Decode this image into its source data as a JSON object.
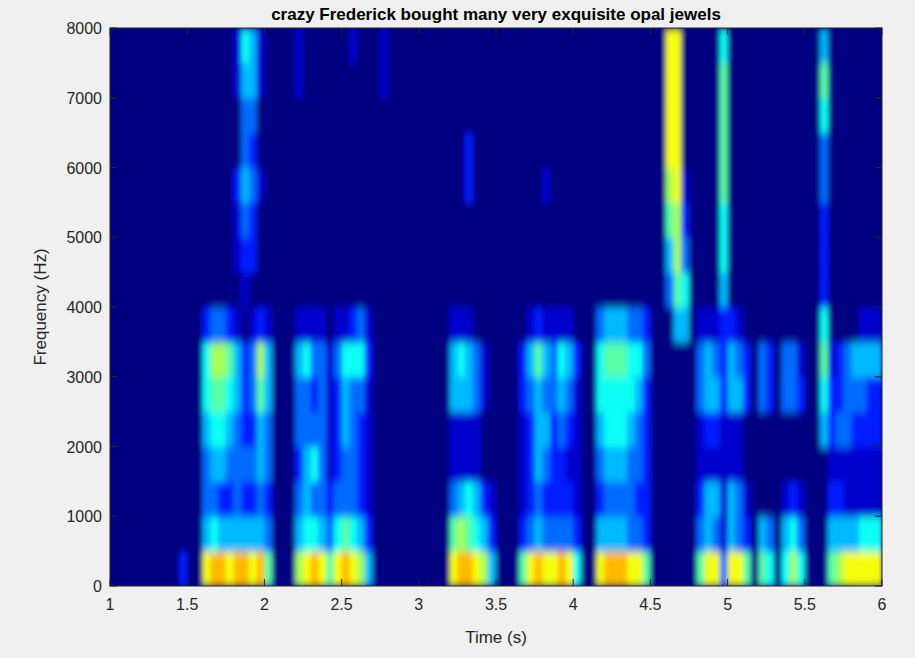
{
  "chart_data": {
    "type": "heatmap",
    "title": "crazy Frederick bought many very exquisite opal jewels",
    "xlabel": "Time (s)",
    "ylabel": "Frequency (Hz)",
    "xlim": [
      1,
      6
    ],
    "ylim": [
      0,
      8000
    ],
    "xticks": [
      1,
      1.5,
      2,
      2.5,
      3,
      3.5,
      4,
      4.5,
      5,
      5.5,
      6
    ],
    "yticks": [
      0,
      1000,
      2000,
      3000,
      4000,
      5000,
      6000,
      7000,
      8000
    ],
    "zlim": [
      0,
      13
    ],
    "z": [
      [
        0,
        0,
        0,
        0,
        0,
        0,
        0,
        0,
        0,
        2,
        0,
        0,
        8,
        9,
        9,
        8,
        9,
        9,
        8,
        9,
        6,
        0,
        0,
        0,
        7,
        8,
        9,
        8,
        6,
        8,
        9,
        8,
        7,
        4,
        0,
        0,
        0,
        0,
        0,
        0,
        0,
        0,
        0,
        0,
        8,
        9,
        9,
        8,
        7,
        4,
        0,
        0,
        0,
        6,
        8,
        9,
        8,
        8,
        9,
        8,
        5,
        0,
        0,
        8,
        9,
        9,
        9,
        8,
        8,
        6,
        0,
        0,
        0,
        0,
        0,
        0,
        6,
        8,
        8,
        3,
        8,
        8,
        6,
        0,
        6,
        5,
        0,
        5,
        7,
        5,
        0,
        0,
        0,
        6,
        7,
        8,
        8,
        8,
        8,
        8
      ],
      [
        0,
        0,
        0,
        0,
        0,
        0,
        0,
        0,
        0,
        0,
        0,
        0,
        4,
        5,
        4,
        4,
        4,
        4,
        4,
        4,
        3,
        0,
        0,
        0,
        4,
        5,
        5,
        4,
        3,
        5,
        6,
        5,
        4,
        2,
        0,
        0,
        0,
        0,
        0,
        0,
        0,
        0,
        0,
        0,
        6,
        7,
        6,
        5,
        4,
        2,
        0,
        0,
        0,
        2,
        3,
        4,
        3,
        3,
        3,
        3,
        2,
        0,
        0,
        4,
        4,
        4,
        4,
        3,
        3,
        2,
        0,
        0,
        0,
        0,
        0,
        0,
        3,
        4,
        3,
        1,
        4,
        3,
        2,
        0,
        4,
        3,
        0,
        4,
        5,
        3,
        0,
        0,
        0,
        4,
        4,
        4,
        4,
        5,
        5,
        5
      ],
      [
        0,
        0,
        0,
        0,
        0,
        0,
        0,
        0,
        0,
        0,
        0,
        0,
        3,
        3,
        2,
        2,
        3,
        2,
        2,
        3,
        2,
        0,
        0,
        0,
        3,
        4,
        3,
        3,
        2,
        3,
        3,
        3,
        2,
        1,
        0,
        0,
        0,
        0,
        0,
        0,
        0,
        0,
        0,
        0,
        3,
        4,
        5,
        4,
        2,
        1,
        0,
        0,
        0,
        1,
        2,
        3,
        2,
        2,
        2,
        2,
        1,
        0,
        0,
        2,
        3,
        3,
        3,
        3,
        2,
        2,
        0,
        0,
        0,
        0,
        0,
        0,
        2,
        4,
        4,
        1,
        4,
        3,
        1,
        0,
        0,
        0,
        0,
        1,
        2,
        1,
        0,
        0,
        0,
        2,
        2,
        1,
        1,
        1,
        1,
        1
      ],
      [
        0,
        0,
        0,
        0,
        0,
        0,
        0,
        0,
        0,
        0,
        0,
        0,
        3,
        4,
        4,
        3,
        3,
        3,
        3,
        4,
        3,
        0,
        0,
        0,
        2,
        4,
        5,
        3,
        1,
        2,
        3,
        3,
        2,
        1,
        0,
        0,
        0,
        0,
        0,
        0,
        0,
        0,
        0,
        0,
        1,
        1,
        1,
        1,
        0,
        0,
        0,
        0,
        0,
        1,
        2,
        4,
        3,
        2,
        2,
        1,
        1,
        0,
        0,
        3,
        4,
        4,
        4,
        3,
        3,
        2,
        0,
        0,
        0,
        0,
        0,
        0,
        1,
        1,
        1,
        1,
        1,
        1,
        0,
        0,
        0,
        0,
        0,
        0,
        0,
        0,
        0,
        0,
        0,
        1,
        1,
        1,
        1,
        1,
        1,
        1
      ],
      [
        0,
        0,
        0,
        0,
        0,
        0,
        0,
        0,
        0,
        0,
        0,
        0,
        4,
        5,
        5,
        4,
        3,
        2,
        2,
        4,
        3,
        0,
        0,
        0,
        3,
        3,
        3,
        3,
        1,
        2,
        4,
        3,
        2,
        1,
        0,
        0,
        0,
        0,
        0,
        0,
        0,
        0,
        0,
        0,
        1,
        1,
        1,
        1,
        0,
        0,
        0,
        0,
        0,
        1,
        2,
        4,
        4,
        2,
        3,
        2,
        1,
        0,
        0,
        4,
        5,
        5,
        5,
        4,
        3,
        2,
        0,
        0,
        0,
        0,
        0,
        0,
        1,
        2,
        2,
        1,
        1,
        1,
        0,
        0,
        0,
        0,
        0,
        0,
        0,
        0,
        0,
        0,
        4,
        2,
        3,
        3,
        2,
        2,
        2,
        2
      ],
      [
        0,
        0,
        0,
        0,
        0,
        0,
        0,
        0,
        0,
        0,
        0,
        0,
        5,
        6,
        6,
        5,
        4,
        2,
        3,
        6,
        4,
        0,
        0,
        0,
        3,
        3,
        2,
        3,
        1,
        2,
        4,
        3,
        3,
        1,
        0,
        0,
        0,
        0,
        0,
        0,
        0,
        0,
        0,
        0,
        4,
        4,
        4,
        3,
        1,
        0,
        0,
        0,
        0,
        2,
        3,
        4,
        3,
        3,
        4,
        3,
        1,
        0,
        0,
        5,
        5,
        5,
        5,
        5,
        4,
        2,
        0,
        0,
        0,
        0,
        0,
        0,
        3,
        4,
        4,
        2,
        4,
        4,
        2,
        0,
        3,
        2,
        0,
        3,
        3,
        2,
        0,
        0,
        5,
        2,
        2,
        3,
        3,
        3,
        2,
        2
      ],
      [
        0,
        0,
        0,
        0,
        0,
        0,
        0,
        0,
        0,
        0,
        0,
        0,
        5,
        7,
        7,
        6,
        4,
        2,
        3,
        7,
        4,
        0,
        0,
        0,
        4,
        5,
        3,
        3,
        1,
        3,
        5,
        5,
        5,
        2,
        0,
        0,
        0,
        0,
        0,
        0,
        0,
        0,
        0,
        0,
        4,
        5,
        4,
        3,
        1,
        0,
        0,
        0,
        0,
        2,
        4,
        6,
        4,
        3,
        5,
        4,
        2,
        0,
        0,
        5,
        6,
        6,
        6,
        5,
        5,
        3,
        0,
        0,
        0,
        0,
        0,
        0,
        3,
        4,
        3,
        2,
        4,
        3,
        2,
        0,
        3,
        2,
        0,
        3,
        3,
        1,
        0,
        0,
        6,
        1,
        2,
        3,
        4,
        4,
        4,
        4
      ],
      [
        0,
        0,
        0,
        0,
        0,
        0,
        0,
        0,
        0,
        0,
        0,
        0,
        2,
        3,
        3,
        2,
        1,
        0,
        1,
        2,
        1,
        0,
        0,
        0,
        1,
        1,
        1,
        1,
        0,
        1,
        1,
        2,
        3,
        1,
        0,
        0,
        0,
        0,
        0,
        0,
        0,
        0,
        0,
        0,
        1,
        1,
        1,
        0,
        0,
        0,
        0,
        0,
        0,
        0,
        1,
        2,
        1,
        1,
        1,
        1,
        0,
        0,
        0,
        3,
        4,
        4,
        4,
        3,
        3,
        2,
        0,
        0,
        0,
        4,
        4,
        0,
        1,
        1,
        1,
        2,
        2,
        1,
        0,
        0,
        0,
        0,
        0,
        0,
        0,
        0,
        0,
        0,
        5,
        0,
        0,
        0,
        0,
        1,
        1,
        1
      ],
      [
        0,
        0,
        0,
        0,
        0,
        0,
        0,
        0,
        0,
        0,
        0,
        0,
        0,
        0,
        0,
        0,
        0,
        1,
        0,
        0,
        0,
        0,
        0,
        0,
        0,
        0,
        0,
        0,
        0,
        0,
        0,
        0,
        0,
        0,
        0,
        0,
        0,
        0,
        0,
        0,
        0,
        0,
        0,
        0,
        0,
        0,
        0,
        0,
        0,
        0,
        0,
        0,
        0,
        0,
        0,
        0,
        0,
        0,
        0,
        0,
        0,
        0,
        0,
        0,
        0,
        0,
        0,
        0,
        0,
        0,
        0,
        0,
        3,
        6,
        5,
        0,
        0,
        0,
        0,
        4,
        0,
        0,
        0,
        0,
        0,
        0,
        0,
        0,
        0,
        0,
        0,
        0,
        2,
        0,
        0,
        0,
        0,
        0,
        0,
        0
      ],
      [
        0,
        0,
        0,
        0,
        0,
        0,
        0,
        0,
        0,
        0,
        0,
        0,
        0,
        0,
        0,
        0,
        1,
        2,
        2,
        0,
        0,
        0,
        0,
        0,
        0,
        0,
        0,
        0,
        0,
        0,
        0,
        0,
        0,
        0,
        0,
        0,
        0,
        0,
        0,
        0,
        0,
        0,
        0,
        0,
        0,
        0,
        0,
        0,
        0,
        0,
        0,
        0,
        0,
        0,
        0,
        0,
        0,
        0,
        0,
        0,
        0,
        0,
        0,
        0,
        0,
        0,
        0,
        0,
        0,
        0,
        0,
        0,
        4,
        7,
        3,
        0,
        0,
        0,
        0,
        5,
        0,
        0,
        0,
        0,
        0,
        0,
        0,
        0,
        0,
        0,
        0,
        0,
        2,
        0,
        0,
        0,
        0,
        0,
        0,
        0
      ],
      [
        0,
        0,
        0,
        0,
        0,
        0,
        0,
        0,
        0,
        0,
        0,
        0,
        0,
        0,
        0,
        0,
        1,
        3,
        2,
        0,
        0,
        0,
        0,
        0,
        0,
        0,
        0,
        0,
        0,
        0,
        0,
        0,
        0,
        0,
        0,
        0,
        0,
        0,
        0,
        0,
        0,
        0,
        0,
        0,
        0,
        0,
        0,
        0,
        0,
        0,
        0,
        0,
        0,
        0,
        0,
        0,
        0,
        0,
        0,
        0,
        0,
        0,
        0,
        0,
        0,
        0,
        0,
        0,
        0,
        0,
        0,
        0,
        6,
        7,
        2,
        0,
        0,
        0,
        0,
        5,
        0,
        0,
        0,
        0,
        0,
        0,
        0,
        0,
        0,
        0,
        0,
        0,
        2,
        0,
        0,
        0,
        0,
        0,
        0,
        0
      ],
      [
        0,
        0,
        0,
        0,
        0,
        0,
        0,
        0,
        0,
        0,
        0,
        0,
        0,
        0,
        0,
        0,
        2,
        4,
        3,
        1,
        0,
        0,
        0,
        0,
        0,
        0,
        0,
        0,
        0,
        0,
        0,
        0,
        0,
        0,
        0,
        0,
        0,
        0,
        0,
        0,
        0,
        0,
        0,
        0,
        0,
        0,
        2,
        0,
        0,
        0,
        0,
        0,
        0,
        0,
        0,
        0,
        1,
        0,
        0,
        0,
        0,
        0,
        0,
        0,
        0,
        0,
        0,
        0,
        0,
        0,
        0,
        0,
        7,
        8,
        1,
        0,
        0,
        0,
        0,
        6,
        0,
        0,
        0,
        0,
        0,
        0,
        0,
        0,
        0,
        0,
        0,
        0,
        3,
        0,
        0,
        0,
        0,
        0,
        0,
        0
      ],
      [
        0,
        0,
        0,
        0,
        0,
        0,
        0,
        0,
        0,
        0,
        0,
        0,
        0,
        0,
        0,
        0,
        0,
        3,
        2,
        0,
        0,
        0,
        0,
        0,
        0,
        0,
        0,
        0,
        0,
        0,
        0,
        0,
        0,
        0,
        0,
        0,
        0,
        0,
        0,
        0,
        0,
        0,
        0,
        0,
        0,
        0,
        2,
        0,
        0,
        0,
        0,
        0,
        0,
        0,
        0,
        0,
        0,
        0,
        0,
        0,
        0,
        0,
        0,
        0,
        0,
        0,
        0,
        0,
        0,
        0,
        0,
        0,
        8,
        8,
        0,
        0,
        0,
        0,
        0,
        6,
        0,
        0,
        0,
        0,
        0,
        0,
        0,
        0,
        0,
        0,
        0,
        0,
        3,
        0,
        0,
        0,
        0,
        0,
        0,
        0
      ],
      [
        0,
        0,
        0,
        0,
        0,
        0,
        0,
        0,
        0,
        0,
        0,
        0,
        0,
        0,
        0,
        0,
        0,
        3,
        3,
        0,
        0,
        0,
        0,
        0,
        0,
        0,
        0,
        0,
        0,
        0,
        0,
        0,
        0,
        0,
        0,
        0,
        0,
        0,
        0,
        0,
        0,
        0,
        0,
        0,
        0,
        0,
        0,
        0,
        0,
        0,
        0,
        0,
        0,
        0,
        0,
        0,
        0,
        0,
        0,
        0,
        0,
        0,
        0,
        0,
        0,
        0,
        0,
        0,
        0,
        0,
        0,
        0,
        8,
        8,
        0,
        0,
        0,
        0,
        0,
        6,
        0,
        0,
        0,
        0,
        0,
        0,
        0,
        0,
        0,
        0,
        0,
        0,
        5,
        0,
        0,
        0,
        0,
        0,
        0,
        0
      ],
      [
        0,
        0,
        0,
        0,
        0,
        0,
        0,
        0,
        0,
        0,
        0,
        0,
        0,
        0,
        0,
        0,
        1,
        4,
        4,
        1,
        0,
        0,
        0,
        0,
        1,
        0,
        0,
        0,
        0,
        0,
        0,
        0,
        0,
        0,
        0,
        1,
        0,
        0,
        0,
        0,
        0,
        0,
        0,
        0,
        0,
        0,
        0,
        0,
        0,
        0,
        0,
        0,
        0,
        0,
        0,
        0,
        0,
        0,
        0,
        0,
        0,
        0,
        0,
        0,
        0,
        0,
        0,
        0,
        0,
        0,
        0,
        0,
        8,
        8,
        0,
        0,
        0,
        0,
        0,
        6,
        0,
        0,
        0,
        0,
        0,
        0,
        0,
        0,
        0,
        0,
        0,
        0,
        6,
        0,
        0,
        0,
        0,
        0,
        0,
        0
      ],
      [
        0,
        0,
        0,
        0,
        0,
        0,
        0,
        0,
        0,
        0,
        0,
        0,
        0,
        0,
        0,
        0,
        1,
        5,
        4,
        1,
        0,
        0,
        0,
        0,
        1,
        0,
        0,
        0,
        0,
        0,
        0,
        1,
        0,
        0,
        0,
        1,
        0,
        0,
        0,
        0,
        0,
        0,
        0,
        0,
        0,
        0,
        0,
        0,
        0,
        0,
        0,
        0,
        0,
        0,
        0,
        0,
        0,
        0,
        0,
        0,
        0,
        0,
        0,
        0,
        0,
        0,
        0,
        0,
        0,
        0,
        0,
        0,
        8,
        8,
        0,
        0,
        0,
        0,
        0,
        5,
        0,
        0,
        0,
        0,
        0,
        0,
        0,
        0,
        0,
        0,
        0,
        0,
        4,
        0,
        0,
        0,
        0,
        0,
        0,
        0
      ]
    ]
  }
}
